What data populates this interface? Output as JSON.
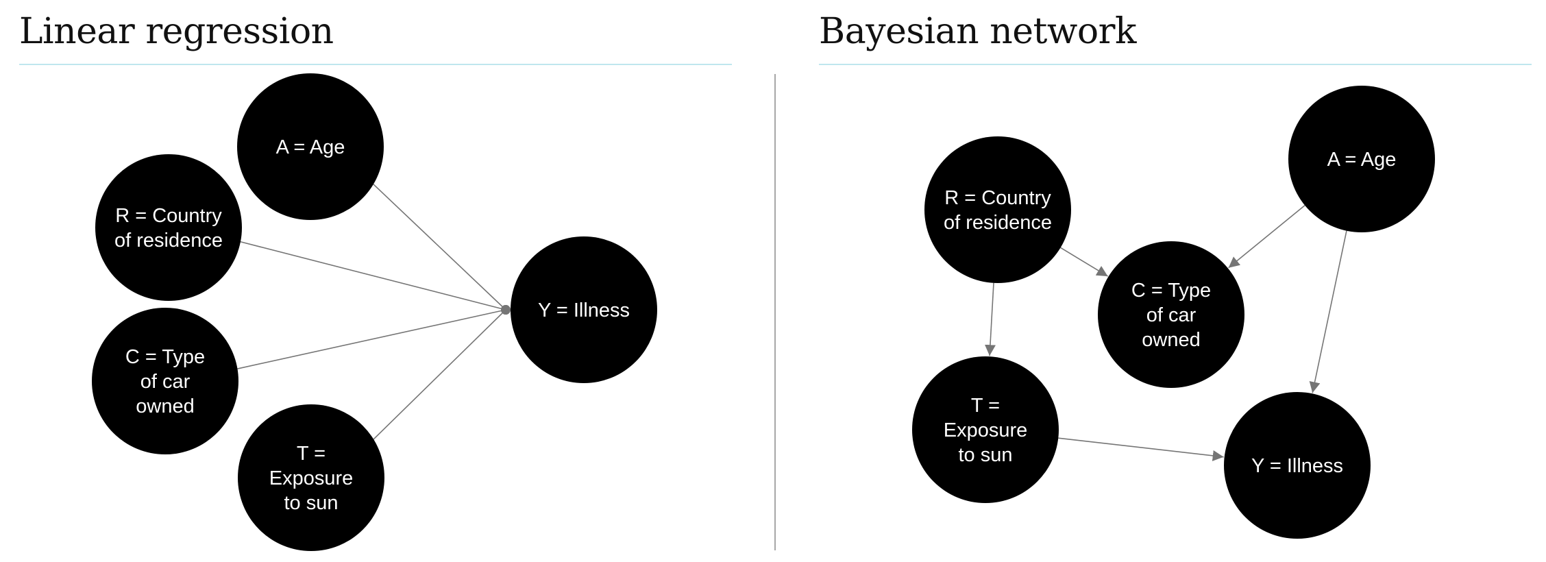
{
  "panels": {
    "left": {
      "title": "Linear regression",
      "nodes": {
        "A": [
          "A = Age"
        ],
        "R": [
          "R = Country",
          "of residence"
        ],
        "C": [
          "C = Type",
          "of car",
          "owned"
        ],
        "T": [
          "T =",
          "Exposure",
          "to sun"
        ],
        "Y": [
          "Y = Illness"
        ]
      },
      "edges": [
        [
          "A",
          "Y"
        ],
        [
          "R",
          "Y"
        ],
        [
          "C",
          "Y"
        ],
        [
          "T",
          "Y"
        ]
      ]
    },
    "right": {
      "title": "Bayesian network",
      "nodes": {
        "R": [
          "R = Country",
          "of residence"
        ],
        "A": [
          "A = Age"
        ],
        "C": [
          "C = Type",
          "of car",
          "owned"
        ],
        "T": [
          "T =",
          "Exposure",
          "to sun"
        ],
        "Y": [
          "Y = Illness"
        ]
      },
      "edges": [
        [
          "R",
          "C"
        ],
        [
          "A",
          "C"
        ],
        [
          "R",
          "T"
        ],
        [
          "A",
          "Y"
        ],
        [
          "T",
          "Y"
        ]
      ]
    }
  },
  "colors": {
    "node_fill": "#000000",
    "node_text": "#ffffff",
    "edge": "#757575",
    "title_rule": "#bfe6ee",
    "divider": "#a6a6a6"
  }
}
